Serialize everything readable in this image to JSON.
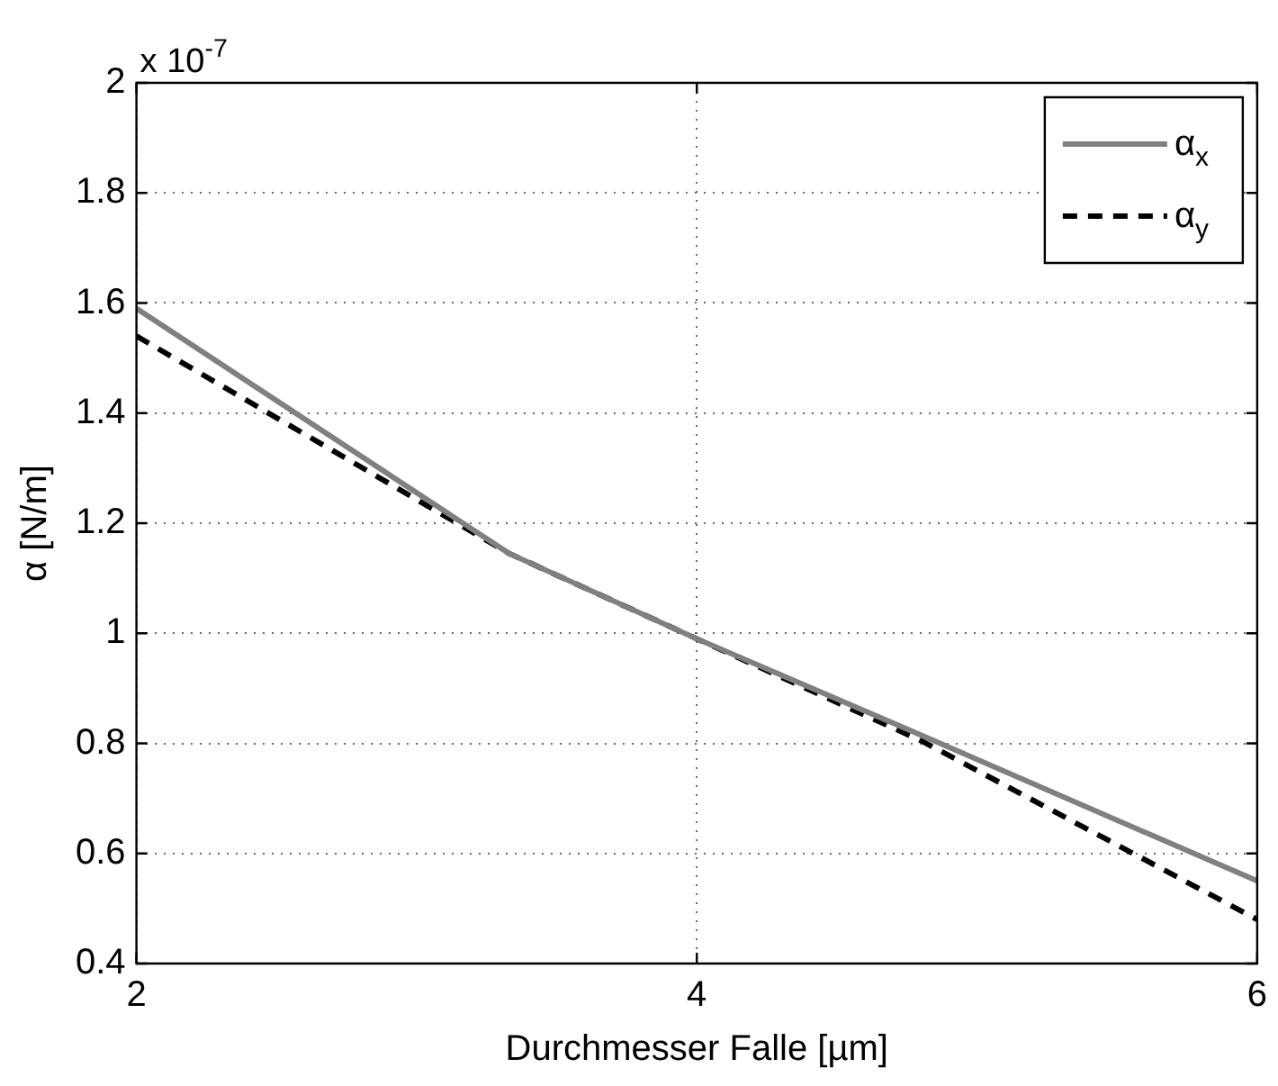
{
  "chart_data": {
    "type": "line",
    "xlabel": "Durchmesser Falle [µm]",
    "ylabel": "α [N/m]",
    "annotations": [
      "x 10$^{-7}$"
    ],
    "x": [
      2,
      3.33,
      4,
      4.8,
      6
    ],
    "series": [
      {
        "name": "α$_{x}$",
        "color": "#808080",
        "line_style": "solid",
        "values": [
          1.59,
          1.145,
          0.99,
          0.815,
          0.55
        ]
      },
      {
        "name": "α$_{y}$",
        "color": "#000000",
        "line_style": "dashed",
        "values": [
          1.54,
          1.145,
          0.99,
          0.805,
          0.48
        ]
      }
    ],
    "xlim": [
      2,
      6
    ],
    "xticks": [
      2,
      4,
      6
    ],
    "ylim": [
      0.4,
      2
    ],
    "yticks": [
      0.4,
      0.6,
      0.8,
      1,
      1.2,
      1.4,
      1.6,
      1.8,
      2
    ],
    "grid": true,
    "legend": "top right",
    "marker": "none"
  }
}
